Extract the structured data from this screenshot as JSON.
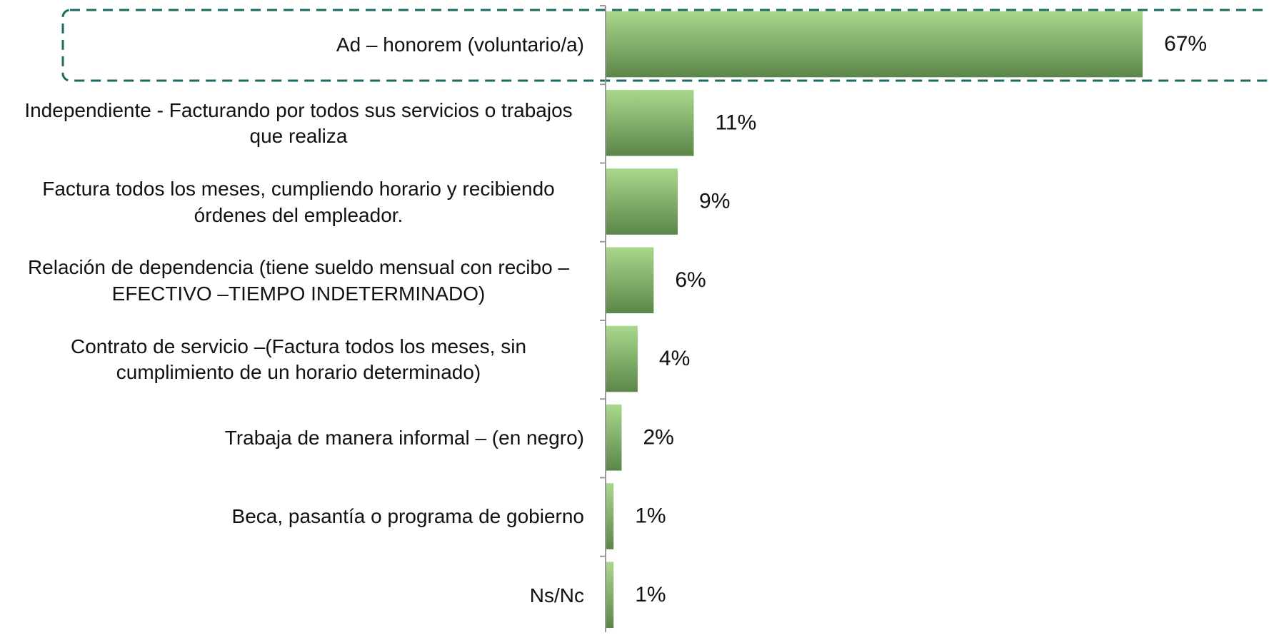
{
  "chart_data": {
    "type": "barh",
    "categories": [
      "Ad – honorem (voluntario/a)",
      "Independiente - Facturando por todos sus servicios o trabajos que realiza",
      "Factura todos los meses, cumpliendo horario y recibiendo órdenes del empleador.",
      "Relación de dependencia (tiene sueldo mensual con recibo – EFECTIVO –TIEMPO INDETERMINADO)",
      "Contrato de servicio –(Factura todos los meses, sin cumplimiento de un horario determinado)",
      "Trabaja de manera informal – (en negro)",
      "Beca, pasantía o programa de gobierno",
      "Ns/Nc"
    ],
    "values": [
      67,
      11,
      9,
      6,
      4,
      2,
      1,
      1
    ],
    "value_labels": [
      "67%",
      "11%",
      "9%",
      "6%",
      "4%",
      "2%",
      "1%",
      "1%"
    ],
    "xlim": [
      0,
      80
    ]
  }
}
